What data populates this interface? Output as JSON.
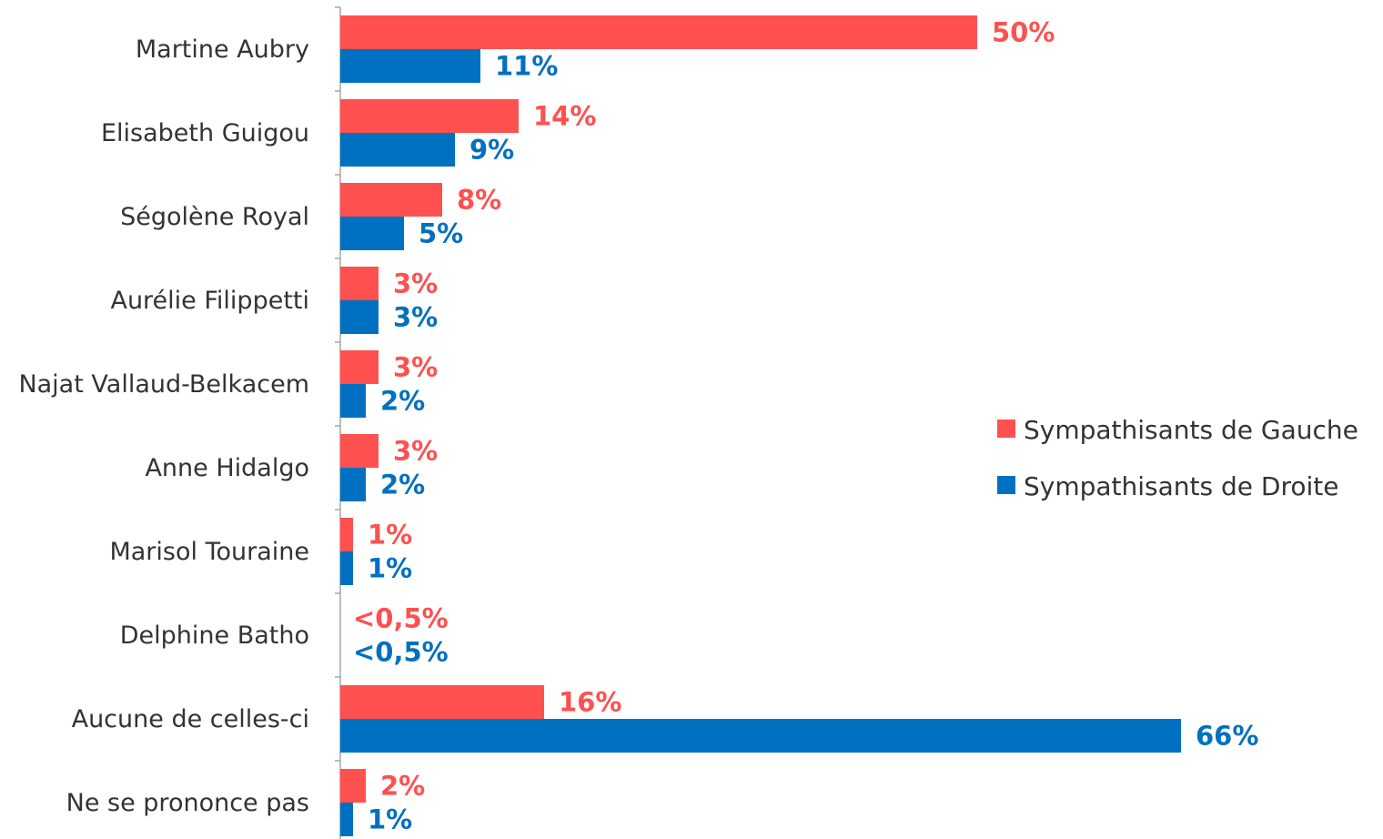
{
  "chart_data": {
    "type": "bar",
    "orientation": "horizontal",
    "categories": [
      "Martine Aubry",
      "Elisabeth Guigou",
      "Ségolène Royal",
      "Aurélie Filippetti",
      "Najat Vallaud-Belkacem",
      "Anne Hidalgo",
      "Marisol Touraine",
      "Delphine Batho",
      "Aucune de celles-ci",
      "Ne se prononce pas"
    ],
    "series": [
      {
        "name": "Sympathisants de Gauche",
        "color": "#ff5050",
        "values": [
          50,
          14,
          8,
          3,
          3,
          3,
          1,
          0.3,
          16,
          2
        ],
        "labels": [
          "50%",
          "14%",
          "8%",
          "3%",
          "3%",
          "3%",
          "1%",
          "<0,5%",
          "16%",
          "2%"
        ]
      },
      {
        "name": "Sympathisants de Droite",
        "color": "#0070c0",
        "values": [
          11,
          9,
          5,
          3,
          2,
          2,
          1,
          0.3,
          66,
          1
        ],
        "labels": [
          "11%",
          "9%",
          "5%",
          "3%",
          "2%",
          "2%",
          "1%",
          "<0,5%",
          "66%",
          "1%"
        ]
      }
    ],
    "xlim": [
      0,
      70
    ],
    "grid": false,
    "legend_position": "right"
  }
}
